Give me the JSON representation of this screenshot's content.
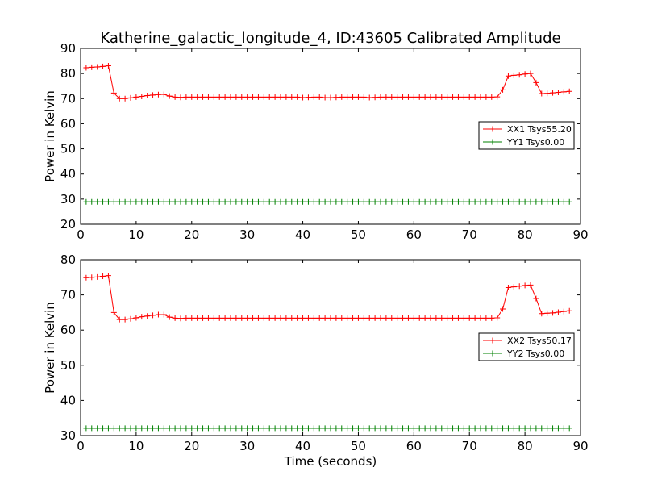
{
  "title": "Katherine_galactic_longitude_4, ID:43605 Calibrated Amplitude",
  "xlabel": "Time (seconds)",
  "chart_data": [
    {
      "type": "line",
      "ylabel": "Power in Kelvin",
      "xlim": [
        0,
        90
      ],
      "ylim": [
        20,
        90
      ],
      "xticks": [
        0,
        10,
        20,
        30,
        40,
        50,
        60,
        70,
        80,
        90
      ],
      "yticks": [
        20,
        30,
        40,
        50,
        60,
        70,
        80,
        90
      ],
      "legend_position": "right",
      "series": [
        {
          "name": "XX1 Tsys55.20",
          "color": "#ff0000",
          "x": [
            1,
            2,
            3,
            4,
            5,
            6,
            7,
            8,
            9,
            10,
            11,
            12,
            13,
            14,
            15,
            16,
            17,
            18,
            19,
            20,
            21,
            22,
            23,
            24,
            25,
            26,
            27,
            28,
            29,
            30,
            31,
            32,
            33,
            34,
            35,
            36,
            37,
            38,
            39,
            40,
            41,
            42,
            43,
            44,
            45,
            46,
            47,
            48,
            49,
            50,
            51,
            52,
            53,
            54,
            55,
            56,
            57,
            58,
            59,
            60,
            61,
            62,
            63,
            64,
            65,
            66,
            67,
            68,
            69,
            70,
            71,
            72,
            73,
            74,
            75,
            76,
            77,
            78,
            79,
            80,
            81,
            82,
            83,
            84,
            85,
            86,
            87,
            88
          ],
          "y": [
            82.3,
            82.5,
            82.6,
            82.8,
            83.1,
            72.2,
            70.0,
            70.0,
            70.3,
            70.6,
            70.9,
            71.2,
            71.4,
            71.6,
            71.7,
            71.0,
            70.6,
            70.5,
            70.6,
            70.6,
            70.6,
            70.6,
            70.6,
            70.6,
            70.6,
            70.6,
            70.6,
            70.6,
            70.6,
            70.6,
            70.6,
            70.6,
            70.6,
            70.6,
            70.6,
            70.6,
            70.6,
            70.6,
            70.6,
            70.4,
            70.5,
            70.6,
            70.6,
            70.4,
            70.4,
            70.5,
            70.6,
            70.6,
            70.6,
            70.6,
            70.6,
            70.4,
            70.5,
            70.6,
            70.6,
            70.6,
            70.6,
            70.6,
            70.6,
            70.6,
            70.6,
            70.6,
            70.6,
            70.6,
            70.6,
            70.6,
            70.6,
            70.6,
            70.6,
            70.6,
            70.6,
            70.6,
            70.6,
            70.6,
            70.7,
            73.5,
            79.0,
            79.3,
            79.5,
            79.8,
            80.0,
            76.4,
            72.0,
            72.1,
            72.3,
            72.5,
            72.7,
            72.9
          ]
        },
        {
          "name": "YY1 Tsys0.00",
          "color": "#008000",
          "x": [
            1,
            2,
            3,
            4,
            5,
            6,
            7,
            8,
            9,
            10,
            11,
            12,
            13,
            14,
            15,
            16,
            17,
            18,
            19,
            20,
            21,
            22,
            23,
            24,
            25,
            26,
            27,
            28,
            29,
            30,
            31,
            32,
            33,
            34,
            35,
            36,
            37,
            38,
            39,
            40,
            41,
            42,
            43,
            44,
            45,
            46,
            47,
            48,
            49,
            50,
            51,
            52,
            53,
            54,
            55,
            56,
            57,
            58,
            59,
            60,
            61,
            62,
            63,
            64,
            65,
            66,
            67,
            68,
            69,
            70,
            71,
            72,
            73,
            74,
            75,
            76,
            77,
            78,
            79,
            80,
            81,
            82,
            83,
            84,
            85,
            86,
            87,
            88
          ],
          "y": [
            28.9,
            28.9,
            28.9,
            28.9,
            28.9,
            28.9,
            28.9,
            28.9,
            28.9,
            28.9,
            28.9,
            28.9,
            28.9,
            28.9,
            28.9,
            28.9,
            28.9,
            28.9,
            28.9,
            28.9,
            28.9,
            28.9,
            28.9,
            28.9,
            28.9,
            28.9,
            28.9,
            28.9,
            28.9,
            28.9,
            28.9,
            28.9,
            28.9,
            28.9,
            28.9,
            28.9,
            28.9,
            28.9,
            28.9,
            28.9,
            28.9,
            28.9,
            28.9,
            28.9,
            28.9,
            28.9,
            28.9,
            28.9,
            28.9,
            28.9,
            28.9,
            28.9,
            28.9,
            28.9,
            28.9,
            28.9,
            28.9,
            28.9,
            28.9,
            28.9,
            28.9,
            28.9,
            28.9,
            28.9,
            28.9,
            28.9,
            28.9,
            28.9,
            28.9,
            28.9,
            28.9,
            28.9,
            28.9,
            28.9,
            28.9,
            28.9,
            28.9,
            28.9,
            28.9,
            28.9,
            28.9,
            28.9,
            28.9,
            28.9,
            28.9,
            28.9,
            28.9,
            28.9
          ]
        }
      ]
    },
    {
      "type": "line",
      "ylabel": "Power in Kelvin",
      "xlabel": "Time (seconds)",
      "xlim": [
        0,
        90
      ],
      "ylim": [
        30,
        80
      ],
      "xticks": [
        0,
        10,
        20,
        30,
        40,
        50,
        60,
        70,
        80,
        90
      ],
      "yticks": [
        30,
        40,
        50,
        60,
        70,
        80
      ],
      "legend_position": "right",
      "series": [
        {
          "name": "XX2 Tsys50.17",
          "color": "#ff0000",
          "x": [
            1,
            2,
            3,
            4,
            5,
            6,
            7,
            8,
            9,
            10,
            11,
            12,
            13,
            14,
            15,
            16,
            17,
            18,
            19,
            20,
            21,
            22,
            23,
            24,
            25,
            26,
            27,
            28,
            29,
            30,
            31,
            32,
            33,
            34,
            35,
            36,
            37,
            38,
            39,
            40,
            41,
            42,
            43,
            44,
            45,
            46,
            47,
            48,
            49,
            50,
            51,
            52,
            53,
            54,
            55,
            56,
            57,
            58,
            59,
            60,
            61,
            62,
            63,
            64,
            65,
            66,
            67,
            68,
            69,
            70,
            71,
            72,
            73,
            74,
            75,
            76,
            77,
            78,
            79,
            80,
            81,
            82,
            83,
            84,
            85,
            86,
            87,
            88
          ],
          "y": [
            74.9,
            75.0,
            75.1,
            75.3,
            75.5,
            65.0,
            63.0,
            63.0,
            63.2,
            63.5,
            63.8,
            64.0,
            64.2,
            64.4,
            64.4,
            63.7,
            63.4,
            63.3,
            63.4,
            63.4,
            63.4,
            63.4,
            63.4,
            63.4,
            63.4,
            63.4,
            63.4,
            63.4,
            63.4,
            63.4,
            63.4,
            63.4,
            63.4,
            63.4,
            63.4,
            63.4,
            63.4,
            63.4,
            63.4,
            63.4,
            63.4,
            63.4,
            63.4,
            63.4,
            63.4,
            63.4,
            63.4,
            63.4,
            63.4,
            63.4,
            63.4,
            63.4,
            63.4,
            63.4,
            63.4,
            63.4,
            63.4,
            63.4,
            63.4,
            63.4,
            63.4,
            63.4,
            63.4,
            63.4,
            63.4,
            63.4,
            63.4,
            63.4,
            63.4,
            63.4,
            63.4,
            63.4,
            63.4,
            63.4,
            63.5,
            66.0,
            72.1,
            72.3,
            72.5,
            72.7,
            72.8,
            69.0,
            64.7,
            64.8,
            64.9,
            65.1,
            65.3,
            65.5
          ]
        },
        {
          "name": "YY2 Tsys0.00",
          "color": "#008000",
          "x": [
            1,
            2,
            3,
            4,
            5,
            6,
            7,
            8,
            9,
            10,
            11,
            12,
            13,
            14,
            15,
            16,
            17,
            18,
            19,
            20,
            21,
            22,
            23,
            24,
            25,
            26,
            27,
            28,
            29,
            30,
            31,
            32,
            33,
            34,
            35,
            36,
            37,
            38,
            39,
            40,
            41,
            42,
            43,
            44,
            45,
            46,
            47,
            48,
            49,
            50,
            51,
            52,
            53,
            54,
            55,
            56,
            57,
            58,
            59,
            60,
            61,
            62,
            63,
            64,
            65,
            66,
            67,
            68,
            69,
            70,
            71,
            72,
            73,
            74,
            75,
            76,
            77,
            78,
            79,
            80,
            81,
            82,
            83,
            84,
            85,
            86,
            87,
            88
          ],
          "y": [
            32.1,
            32.1,
            32.1,
            32.1,
            32.1,
            32.1,
            32.1,
            32.1,
            32.1,
            32.1,
            32.1,
            32.1,
            32.1,
            32.1,
            32.1,
            32.1,
            32.1,
            32.1,
            32.1,
            32.1,
            32.1,
            32.1,
            32.1,
            32.1,
            32.1,
            32.1,
            32.1,
            32.1,
            32.1,
            32.1,
            32.1,
            32.1,
            32.1,
            32.1,
            32.1,
            32.1,
            32.1,
            32.1,
            32.1,
            32.1,
            32.1,
            32.1,
            32.1,
            32.1,
            32.1,
            32.1,
            32.1,
            32.1,
            32.1,
            32.1,
            32.1,
            32.1,
            32.1,
            32.1,
            32.1,
            32.1,
            32.1,
            32.1,
            32.1,
            32.1,
            32.1,
            32.1,
            32.1,
            32.1,
            32.1,
            32.1,
            32.1,
            32.1,
            32.1,
            32.1,
            32.1,
            32.1,
            32.1,
            32.1,
            32.1,
            32.1,
            32.1,
            32.1,
            32.1,
            32.1,
            32.1,
            32.1,
            32.1,
            32.1,
            32.1,
            32.1,
            32.1,
            32.1
          ]
        }
      ]
    }
  ]
}
